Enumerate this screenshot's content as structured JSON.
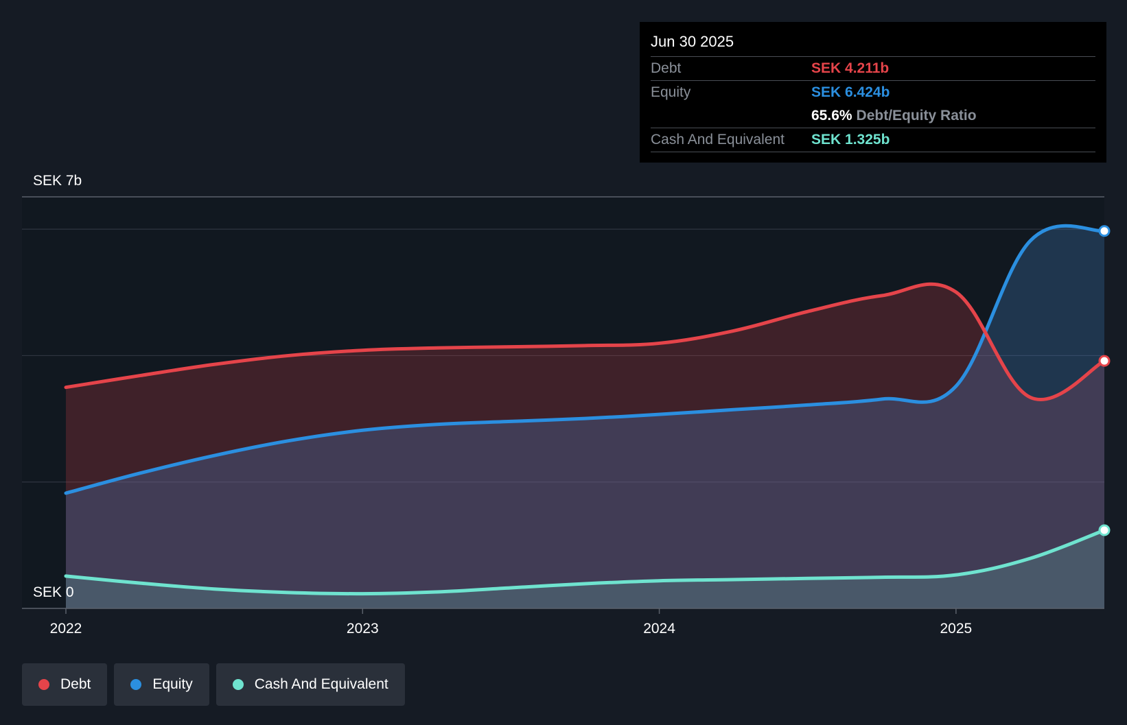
{
  "colors": {
    "debt": "#e5444a",
    "equity": "#2b8fe0",
    "cash": "#6fe3cf",
    "muted": "#8a9099",
    "background": "#151b24"
  },
  "tooltip": {
    "date": "Jun 30 2025",
    "debt_label": "Debt",
    "debt_value": "SEK 4.211b",
    "equity_label": "Equity",
    "equity_value": "SEK 6.424b",
    "ratio_value": "65.6%",
    "ratio_label": "Debt/Equity Ratio",
    "cash_label": "Cash And Equivalent",
    "cash_value": "SEK 1.325b"
  },
  "legend": [
    {
      "label": "Debt",
      "color": "#e5444a"
    },
    {
      "label": "Equity",
      "color": "#2b8fe0"
    },
    {
      "label": "Cash And Equivalent",
      "color": "#6fe3cf"
    }
  ],
  "chart_data": {
    "type": "area",
    "title": "",
    "xlabel": "",
    "ylabel": "",
    "y_top_label": "SEK 7b",
    "y_bottom_label": "SEK 0",
    "ylim": [
      0,
      7
    ],
    "xlim": [
      2022.0,
      2025.5
    ],
    "x_ticks": [
      2022,
      2023,
      2024,
      2025
    ],
    "x_tick_labels": [
      "2022",
      "2023",
      "2024",
      "2025"
    ],
    "y_gridlines": [
      0,
      2.15,
      4.3,
      6.45,
      7
    ],
    "grid": true,
    "legend_position": "bottom-left",
    "series": [
      {
        "name": "Debt",
        "x": [
          2022.0,
          2022.25,
          2022.5,
          2022.75,
          2023.0,
          2023.25,
          2023.5,
          2023.75,
          2024.0,
          2024.25,
          2024.5,
          2024.75,
          2025.0,
          2025.25,
          2025.5
        ],
        "values": [
          3.76,
          3.96,
          4.15,
          4.3,
          4.39,
          4.43,
          4.45,
          4.47,
          4.51,
          4.72,
          5.05,
          5.32,
          5.38,
          3.59,
          4.21
        ]
      },
      {
        "name": "Equity",
        "x": [
          2022.0,
          2022.25,
          2022.5,
          2022.75,
          2023.0,
          2023.25,
          2023.5,
          2023.75,
          2024.0,
          2024.25,
          2024.5,
          2024.75,
          2025.0,
          2025.25,
          2025.5
        ],
        "values": [
          1.96,
          2.3,
          2.6,
          2.85,
          3.03,
          3.13,
          3.18,
          3.23,
          3.3,
          3.38,
          3.46,
          3.56,
          3.78,
          6.25,
          6.42
        ]
      },
      {
        "name": "Cash And Equivalent",
        "x": [
          2022.0,
          2022.25,
          2022.5,
          2022.75,
          2023.0,
          2023.25,
          2023.5,
          2023.75,
          2024.0,
          2024.25,
          2024.5,
          2024.75,
          2025.0,
          2025.25,
          2025.5
        ],
        "values": [
          0.55,
          0.43,
          0.33,
          0.27,
          0.25,
          0.28,
          0.35,
          0.42,
          0.47,
          0.49,
          0.51,
          0.53,
          0.57,
          0.85,
          1.33
        ]
      }
    ]
  }
}
